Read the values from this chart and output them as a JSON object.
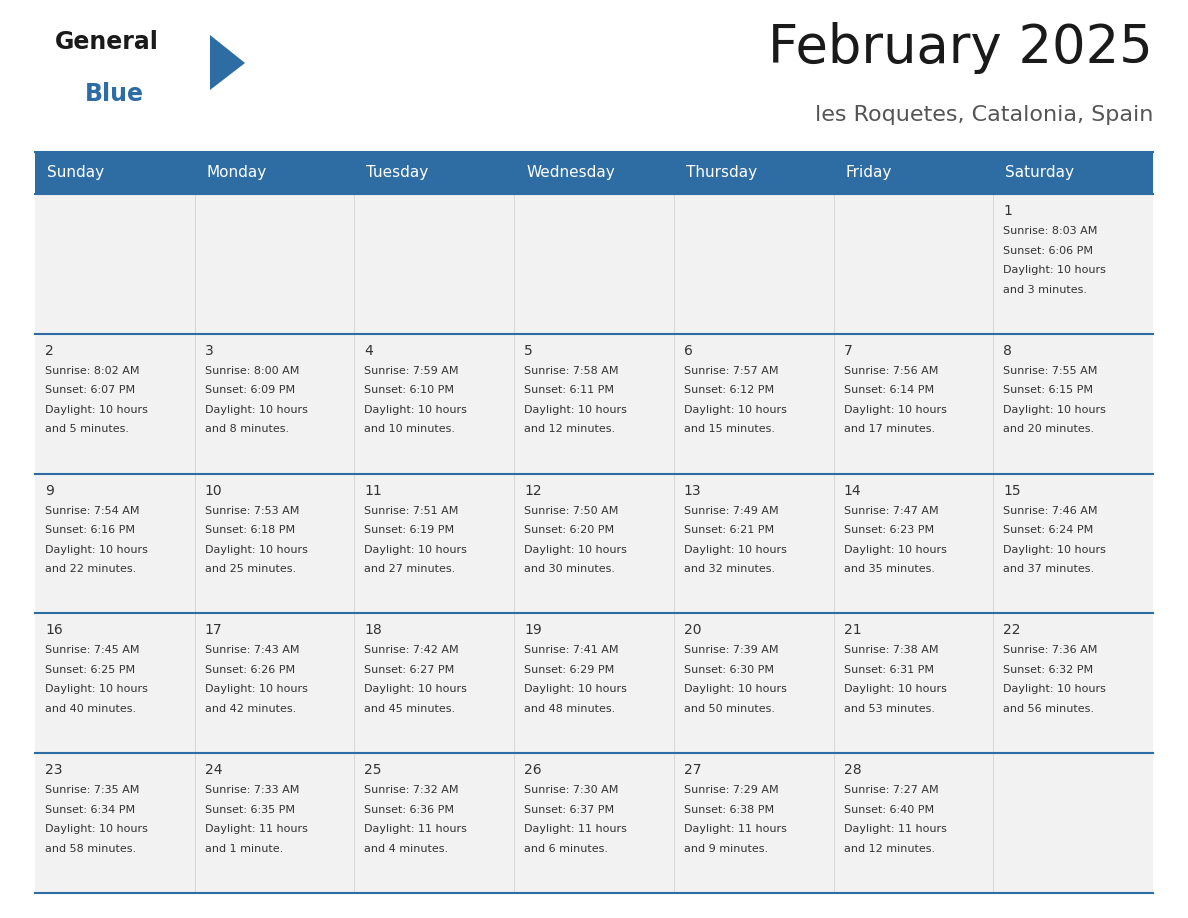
{
  "title": "February 2025",
  "subtitle": "les Roquetes, Catalonia, Spain",
  "days_of_week": [
    "Sunday",
    "Monday",
    "Tuesday",
    "Wednesday",
    "Thursday",
    "Friday",
    "Saturday"
  ],
  "header_bg": "#2E6DA4",
  "header_text": "#FFFFFF",
  "cell_bg": "#F2F2F2",
  "border_color": "#2E6DA4",
  "day_number_color": "#333333",
  "text_color": "#333333",
  "title_color": "#1a1a1a",
  "subtitle_color": "#555555",
  "logo_general_color": "#1a1a1a",
  "logo_blue_color": "#2E6DA4",
  "header_font_size": 11,
  "day_font_size": 10,
  "cell_font_size": 8,
  "calendar_data": [
    [
      {
        "day": "",
        "sunrise": "",
        "sunset": "",
        "daylight": ""
      },
      {
        "day": "",
        "sunrise": "",
        "sunset": "",
        "daylight": ""
      },
      {
        "day": "",
        "sunrise": "",
        "sunset": "",
        "daylight": ""
      },
      {
        "day": "",
        "sunrise": "",
        "sunset": "",
        "daylight": ""
      },
      {
        "day": "",
        "sunrise": "",
        "sunset": "",
        "daylight": ""
      },
      {
        "day": "",
        "sunrise": "",
        "sunset": "",
        "daylight": ""
      },
      {
        "day": "1",
        "sunrise": "8:03 AM",
        "sunset": "6:06 PM",
        "daylight": "10 hours\nand 3 minutes."
      }
    ],
    [
      {
        "day": "2",
        "sunrise": "8:02 AM",
        "sunset": "6:07 PM",
        "daylight": "10 hours\nand 5 minutes."
      },
      {
        "day": "3",
        "sunrise": "8:00 AM",
        "sunset": "6:09 PM",
        "daylight": "10 hours\nand 8 minutes."
      },
      {
        "day": "4",
        "sunrise": "7:59 AM",
        "sunset": "6:10 PM",
        "daylight": "10 hours\nand 10 minutes."
      },
      {
        "day": "5",
        "sunrise": "7:58 AM",
        "sunset": "6:11 PM",
        "daylight": "10 hours\nand 12 minutes."
      },
      {
        "day": "6",
        "sunrise": "7:57 AM",
        "sunset": "6:12 PM",
        "daylight": "10 hours\nand 15 minutes."
      },
      {
        "day": "7",
        "sunrise": "7:56 AM",
        "sunset": "6:14 PM",
        "daylight": "10 hours\nand 17 minutes."
      },
      {
        "day": "8",
        "sunrise": "7:55 AM",
        "sunset": "6:15 PM",
        "daylight": "10 hours\nand 20 minutes."
      }
    ],
    [
      {
        "day": "9",
        "sunrise": "7:54 AM",
        "sunset": "6:16 PM",
        "daylight": "10 hours\nand 22 minutes."
      },
      {
        "day": "10",
        "sunrise": "7:53 AM",
        "sunset": "6:18 PM",
        "daylight": "10 hours\nand 25 minutes."
      },
      {
        "day": "11",
        "sunrise": "7:51 AM",
        "sunset": "6:19 PM",
        "daylight": "10 hours\nand 27 minutes."
      },
      {
        "day": "12",
        "sunrise": "7:50 AM",
        "sunset": "6:20 PM",
        "daylight": "10 hours\nand 30 minutes."
      },
      {
        "day": "13",
        "sunrise": "7:49 AM",
        "sunset": "6:21 PM",
        "daylight": "10 hours\nand 32 minutes."
      },
      {
        "day": "14",
        "sunrise": "7:47 AM",
        "sunset": "6:23 PM",
        "daylight": "10 hours\nand 35 minutes."
      },
      {
        "day": "15",
        "sunrise": "7:46 AM",
        "sunset": "6:24 PM",
        "daylight": "10 hours\nand 37 minutes."
      }
    ],
    [
      {
        "day": "16",
        "sunrise": "7:45 AM",
        "sunset": "6:25 PM",
        "daylight": "10 hours\nand 40 minutes."
      },
      {
        "day": "17",
        "sunrise": "7:43 AM",
        "sunset": "6:26 PM",
        "daylight": "10 hours\nand 42 minutes."
      },
      {
        "day": "18",
        "sunrise": "7:42 AM",
        "sunset": "6:27 PM",
        "daylight": "10 hours\nand 45 minutes."
      },
      {
        "day": "19",
        "sunrise": "7:41 AM",
        "sunset": "6:29 PM",
        "daylight": "10 hours\nand 48 minutes."
      },
      {
        "day": "20",
        "sunrise": "7:39 AM",
        "sunset": "6:30 PM",
        "daylight": "10 hours\nand 50 minutes."
      },
      {
        "day": "21",
        "sunrise": "7:38 AM",
        "sunset": "6:31 PM",
        "daylight": "10 hours\nand 53 minutes."
      },
      {
        "day": "22",
        "sunrise": "7:36 AM",
        "sunset": "6:32 PM",
        "daylight": "10 hours\nand 56 minutes."
      }
    ],
    [
      {
        "day": "23",
        "sunrise": "7:35 AM",
        "sunset": "6:34 PM",
        "daylight": "10 hours\nand 58 minutes."
      },
      {
        "day": "24",
        "sunrise": "7:33 AM",
        "sunset": "6:35 PM",
        "daylight": "11 hours\nand 1 minute."
      },
      {
        "day": "25",
        "sunrise": "7:32 AM",
        "sunset": "6:36 PM",
        "daylight": "11 hours\nand 4 minutes."
      },
      {
        "day": "26",
        "sunrise": "7:30 AM",
        "sunset": "6:37 PM",
        "daylight": "11 hours\nand 6 minutes."
      },
      {
        "day": "27",
        "sunrise": "7:29 AM",
        "sunset": "6:38 PM",
        "daylight": "11 hours\nand 9 minutes."
      },
      {
        "day": "28",
        "sunrise": "7:27 AM",
        "sunset": "6:40 PM",
        "daylight": "11 hours\nand 12 minutes."
      },
      {
        "day": "",
        "sunrise": "",
        "sunset": "",
        "daylight": ""
      }
    ]
  ]
}
